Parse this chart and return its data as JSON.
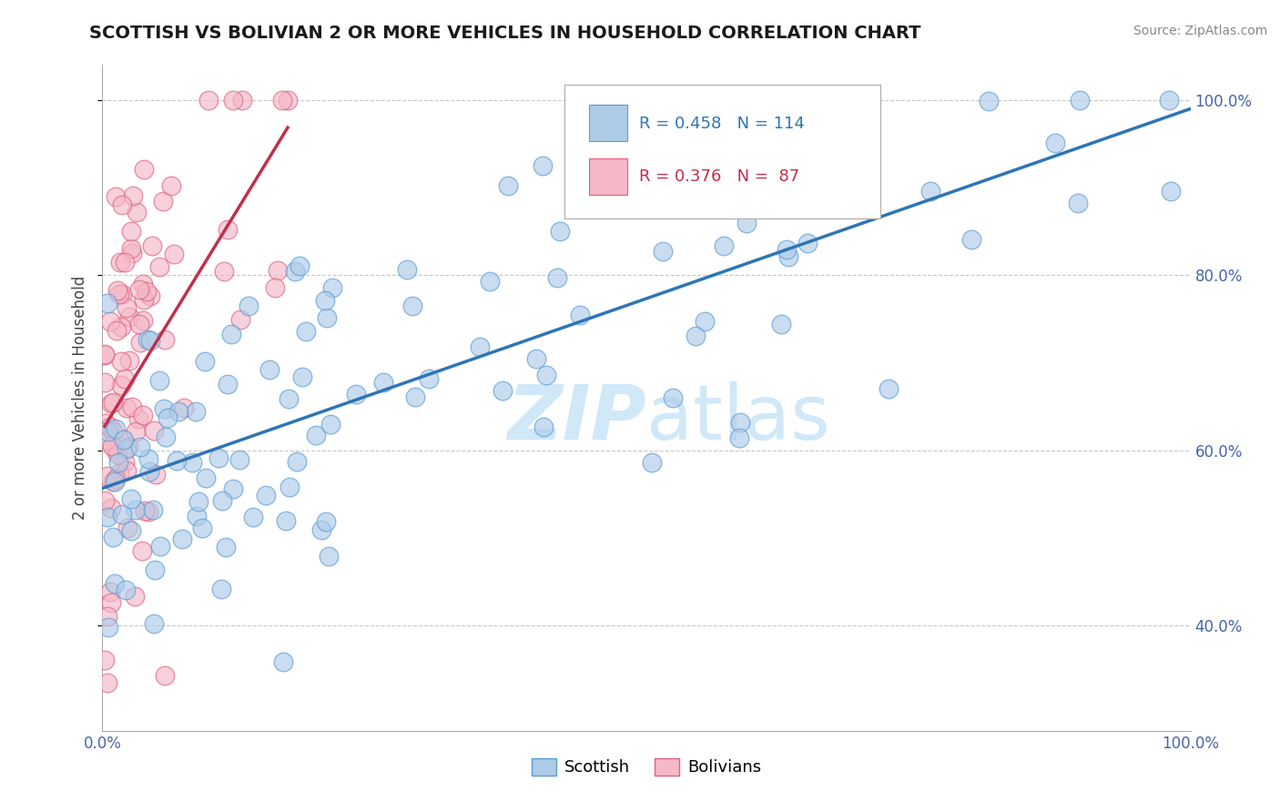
{
  "title": "SCOTTISH VS BOLIVIAN 2 OR MORE VEHICLES IN HOUSEHOLD CORRELATION CHART",
  "source": "Source: ZipAtlas.com",
  "ylabel": "2 or more Vehicles in Household",
  "xlim": [
    0,
    100
  ],
  "ylim": [
    28,
    104
  ],
  "legend_labels": [
    "Scottish",
    "Bolivians"
  ],
  "scottish_R": 0.458,
  "scottish_N": 114,
  "bolivian_R": 0.376,
  "bolivian_N": 87,
  "scottish_color": "#aecce8",
  "scottish_edge_color": "#5b9bd5",
  "scottish_line_color": "#2e75b6",
  "bolivian_color": "#f4b8c8",
  "bolivian_edge_color": "#e06080",
  "bolivian_line_color": "#c0304a",
  "background_color": "#ffffff",
  "grid_color": "#c8c8c8",
  "title_color": "#1a1a1a",
  "source_color": "#888888",
  "watermark_color": "#d0e8f8",
  "ytick_positions": [
    40,
    60,
    80,
    100
  ],
  "ytick_labels": [
    "40.0%",
    "60.0%",
    "80.0%",
    "100.0%"
  ],
  "xtick_positions": [
    0,
    100
  ],
  "xtick_labels": [
    "0.0%",
    "100.0%"
  ]
}
